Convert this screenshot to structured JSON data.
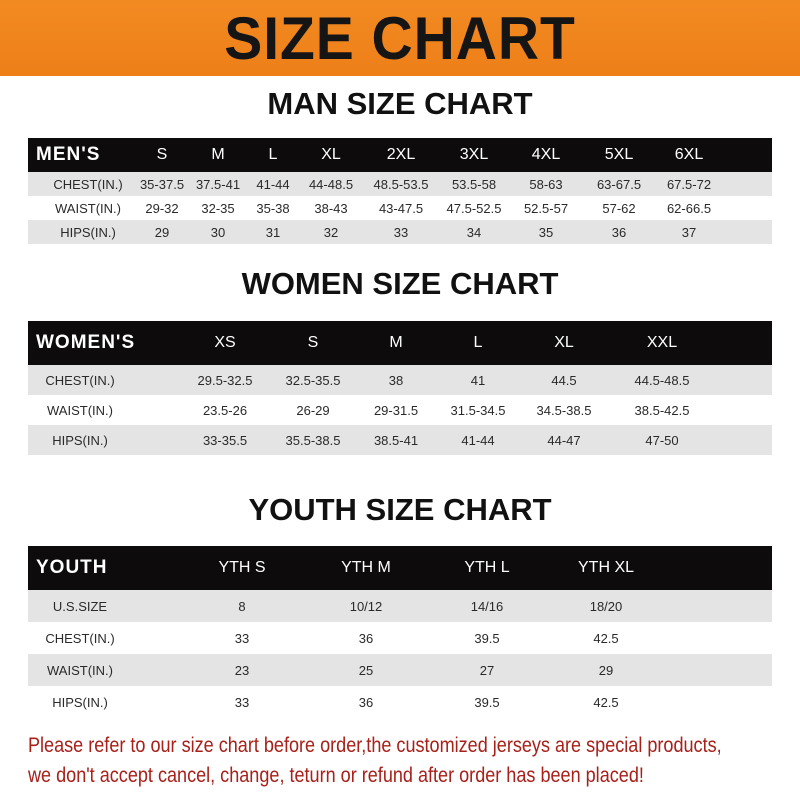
{
  "title": "SIZE CHART",
  "colors": {
    "banner": "#f08522",
    "header_bg": "#0d0b0b",
    "row_gray": "#e4e4e4",
    "note": "#a8201a"
  },
  "men": {
    "title": "MAN SIZE CHART",
    "header": [
      "MEN'S",
      "S",
      "M",
      "L",
      "XL",
      "2XL",
      "3XL",
      "4XL",
      "5XL",
      "6XL"
    ],
    "rows": [
      [
        "CHEST(IN.)",
        "35-37.5",
        "37.5-41",
        "41-44",
        "44-48.5",
        "48.5-53.5",
        "53.5-58",
        "58-63",
        "63-67.5",
        "67.5-72"
      ],
      [
        "WAIST(IN.)",
        "29-32",
        "32-35",
        "35-38",
        "38-43",
        "43-47.5",
        "47.5-52.5",
        "52.5-57",
        "57-62",
        "62-66.5"
      ],
      [
        "HIPS(IN.)",
        "29",
        "30",
        "31",
        "32",
        "33",
        "34",
        "35",
        "36",
        "37"
      ]
    ]
  },
  "women": {
    "title": "WOMEN SIZE CHART",
    "header": [
      "WOMEN'S",
      "XS",
      "S",
      "M",
      "L",
      "XL",
      "XXL"
    ],
    "rows": [
      [
        "CHEST(IN.)",
        "29.5-32.5",
        "32.5-35.5",
        "38",
        "41",
        "44.5",
        "44.5-48.5"
      ],
      [
        "WAIST(IN.)",
        "23.5-26",
        "26-29",
        "29-31.5",
        "31.5-34.5",
        "34.5-38.5",
        "38.5-42.5"
      ],
      [
        "HIPS(IN.)",
        "33-35.5",
        "35.5-38.5",
        "38.5-41",
        "41-44",
        "44-47",
        "47-50"
      ]
    ]
  },
  "youth": {
    "title": "YOUTH SIZE CHART",
    "header": [
      "YOUTH",
      "YTH S",
      "YTH M",
      "YTH L",
      "YTH XL"
    ],
    "rows": [
      [
        "U.S.SIZE",
        "8",
        "10/12",
        "14/16",
        "18/20"
      ],
      [
        "CHEST(IN.)",
        "33",
        "36",
        "39.5",
        "42.5"
      ],
      [
        "WAIST(IN.)",
        "23",
        "25",
        "27",
        "29"
      ],
      [
        "HIPS(IN.)",
        "33",
        "36",
        "39.5",
        "42.5"
      ]
    ]
  },
  "notice": [
    "Please refer to our size chart before order,the customized jerseys are special products,",
    "we don't accept cancel, change, teturn or refund after order has been placed!"
  ]
}
